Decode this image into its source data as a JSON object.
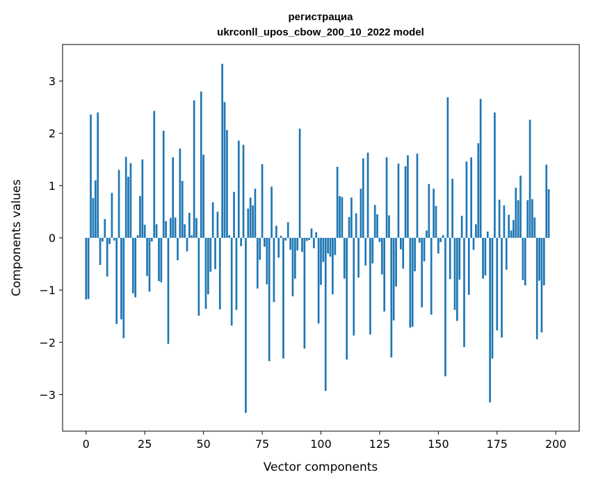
{
  "chart_data": {
    "type": "bar",
    "title": "регистрациа",
    "subtitle": "ukrconll_upos_cbow_200_10_2022 model",
    "xlabel": "Vector components",
    "ylabel": "Components values",
    "xlim": [
      -10,
      210
    ],
    "ylim": [
      -3.7,
      3.7
    ],
    "xticks": [
      0,
      25,
      50,
      75,
      100,
      125,
      150,
      175,
      200
    ],
    "yticks": [
      -3,
      -2,
      -1,
      0,
      1,
      2,
      3
    ],
    "grid": false,
    "bar_color": "#1f77b4",
    "values": [
      -1.18,
      -1.17,
      2.36,
      0.76,
      1.1,
      2.4,
      -0.52,
      -0.07,
      0.36,
      -0.74,
      -0.12,
      0.86,
      -0.05,
      -1.65,
      1.3,
      -1.56,
      -1.92,
      1.55,
      1.17,
      1.43,
      -1.06,
      -1.14,
      0.05,
      0.8,
      1.5,
      0.25,
      -0.73,
      -1.03,
      -0.07,
      2.43,
      0.26,
      -0.83,
      -0.85,
      2.05,
      0.32,
      -2.03,
      0.38,
      1.54,
      0.39,
      -0.43,
      1.71,
      1.09,
      0.26,
      -0.26,
      0.48,
      0.05,
      2.63,
      0.38,
      -1.49,
      2.8,
      1.59,
      -1.36,
      -1.08,
      -0.65,
      0.68,
      -0.6,
      0.5,
      -1.37,
      3.33,
      2.6,
      2.06,
      0.05,
      -1.68,
      0.88,
      -1.38,
      1.86,
      -0.16,
      1.78,
      -3.35,
      0.56,
      0.77,
      0.62,
      0.94,
      -0.97,
      -0.42,
      1.41,
      -0.17,
      -0.89,
      -2.36,
      0.98,
      -1.23,
      0.23,
      -0.38,
      0.04,
      -2.31,
      -0.05,
      0.3,
      -0.23,
      -1.12,
      -0.78,
      -0.24,
      2.09,
      -0.27,
      -2.12,
      -0.06,
      -0.04,
      0.18,
      -0.2,
      0.11,
      -1.64,
      -0.9,
      -0.46,
      -2.93,
      -0.3,
      -0.36,
      -1.08,
      -0.33,
      1.36,
      0.8,
      0.78,
      -0.78,
      -2.33,
      0.4,
      0.77,
      -1.87,
      0.47,
      -0.76,
      0.94,
      1.52,
      -0.53,
      1.63,
      -1.85,
      -0.49,
      0.63,
      0.45,
      -0.08,
      -0.7,
      -1.41,
      1.54,
      0.43,
      -2.29,
      -1.58,
      -0.93,
      1.42,
      -0.22,
      -0.59,
      1.37,
      1.58,
      -1.72,
      -1.7,
      -0.64,
      1.61,
      -0.09,
      -1.33,
      -0.45,
      0.14,
      1.03,
      -1.47,
      0.94,
      0.61,
      -0.3,
      -0.08,
      0.05,
      -2.65,
      2.69,
      -0.79,
      1.13,
      -1.38,
      -1.59,
      -0.8,
      0.42,
      -2.09,
      1.46,
      -1.09,
      1.54,
      -0.23,
      0.26,
      1.81,
      2.66,
      -0.78,
      -0.72,
      0.12,
      -3.15,
      -2.31,
      2.4,
      -1.77,
      0.73,
      -1.91,
      0.62,
      -0.61,
      0.44,
      0.14,
      0.34,
      0.96,
      0.72,
      1.19,
      -0.81,
      -0.91,
      0.72,
      2.26,
      0.74,
      0.39,
      -1.94,
      -0.82,
      -1.81,
      -0.91,
      1.4,
      0.93
    ]
  }
}
